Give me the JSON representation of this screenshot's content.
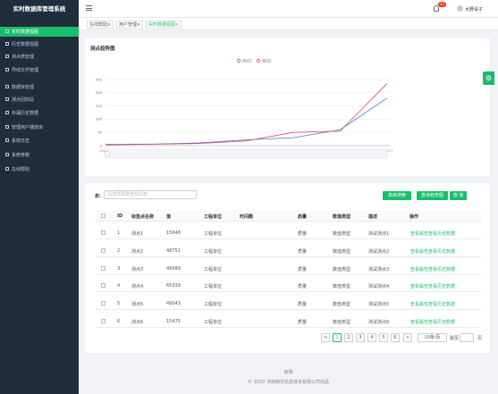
{
  "sidebar": {
    "title": "实时数据库管理系统",
    "menu": [
      "实时数据视图",
      "历史数据视图",
      "测点表管理",
      "导线文件管理",
      "数据库管理",
      "测点回收站",
      "补漏历史数据",
      "管理用户播放库",
      "系统日志",
      "系统参数",
      "在线帮助"
    ]
  },
  "topbar": {
    "badge": "12",
    "user": "大野设子"
  },
  "tabs": [
    "在线帮助",
    "用户管理",
    "实时数据视图"
  ],
  "chart_data": {
    "type": "line",
    "title": "测点趋势图",
    "categories": [
      "2020-1",
      "2020-2",
      "2020-3",
      "2020-4",
      "2020-5",
      "2020-6",
      "2020-7"
    ],
    "series": [
      {
        "name": "测点1",
        "color": "#4a7bd0",
        "values": [
          5,
          6,
          10,
          22,
          30,
          60,
          180
        ]
      },
      {
        "name": "测点2",
        "color": "#d94e6b",
        "values": [
          3,
          5,
          8,
          18,
          50,
          55,
          235
        ]
      }
    ],
    "ylim": [
      0,
      250
    ],
    "yticks": [
      0,
      50,
      100,
      150,
      200,
      250
    ],
    "grid": true
  },
  "toolbar": {
    "label": "表:",
    "placeholder": "请选择需要查看的表",
    "buttons": [
      "高级搜索",
      "查询趋势图",
      "查 询"
    ]
  },
  "table": {
    "headers": [
      "ID",
      "标签点名称",
      "值",
      "工程单位",
      "时间戳",
      "质量",
      "数值类型",
      "描述",
      "操作"
    ],
    "rows": [
      {
        "id": 1,
        "name": "测点1",
        "value": 15648,
        "unit": "工程单位",
        "quality": "质量",
        "dtype": "数值类型",
        "desc": "测试测点1",
        "actions": [
          "查看属性",
          "查看历史数据"
        ]
      },
      {
        "id": 2,
        "name": "测点2",
        "value": 48751,
        "unit": "工程单位",
        "quality": "质量",
        "dtype": "数值类型",
        "desc": "测试测点2",
        "actions": [
          "查看属性",
          "查看历史数据"
        ]
      },
      {
        "id": 3,
        "name": "测点3",
        "value": 49589,
        "unit": "工程单位",
        "quality": "质量",
        "dtype": "数值类型",
        "desc": "测试测点3",
        "actions": [
          "查看属性",
          "查看历史数据"
        ]
      },
      {
        "id": 4,
        "name": "测点4",
        "value": 65339,
        "unit": "工程单位",
        "quality": "质量",
        "dtype": "数值类型",
        "desc": "测试测点4",
        "actions": [
          "查看属性",
          "查看历史数据"
        ]
      },
      {
        "id": 5,
        "name": "测点5",
        "value": 49043,
        "unit": "工程单位",
        "quality": "质量",
        "dtype": "数值类型",
        "desc": "测试测点5",
        "actions": [
          "查看属性",
          "查看历史数据"
        ]
      },
      {
        "id": 6,
        "name": "测点6",
        "value": 15475,
        "unit": "工程单位",
        "quality": "质量",
        "dtype": "数值类型",
        "desc": "测试测点6",
        "actions": [
          "查看属性",
          "查看历史数据"
        ]
      }
    ]
  },
  "pagination": {
    "prev": "<",
    "pages": [
      1,
      2,
      3,
      4,
      5,
      6
    ],
    "next": ">",
    "size": "10条/页",
    "jump": "跳至",
    "unit": "页"
  },
  "footer": {
    "link": "官网",
    "copyright": "© 2020 济南朝华信息技术有限公司出品"
  }
}
